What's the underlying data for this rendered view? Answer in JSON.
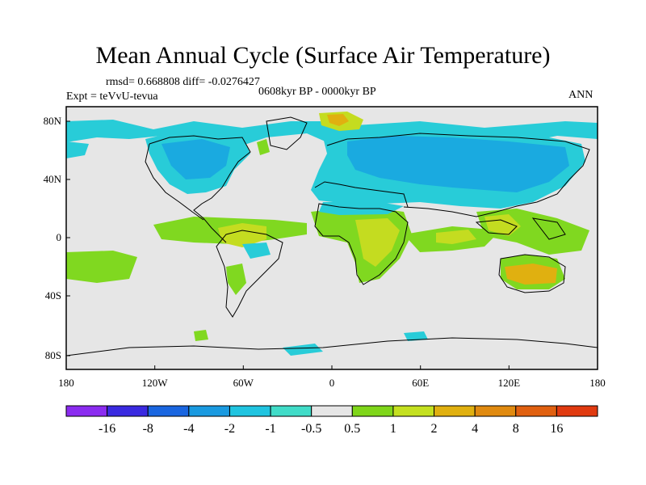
{
  "title": "Mean Annual Cycle (Surface Air Temperature)",
  "stats": {
    "rmsd": "rmsd= 0.668808 diff= -0.0276427",
    "experiment": "Expt = teVvU-tevua",
    "period": "0608kyr BP - 0000kyr BP",
    "season": "ANN"
  },
  "axes": {
    "x_ticks": [
      "180",
      "120W",
      "60W",
      "0",
      "60E",
      "120E",
      "180"
    ],
    "y_ticks": [
      "80N",
      "40N",
      "0",
      "40S",
      "80S"
    ]
  },
  "colorbar": {
    "colors": [
      "#8b2cf0",
      "#3a2ae0",
      "#1a66e0",
      "#1a9ae0",
      "#20c4e0",
      "#40dcc8",
      "#e6e6e6",
      "#7fd61a",
      "#c4e020",
      "#e0b010",
      "#e08a10",
      "#e06010",
      "#e03a10"
    ],
    "labels": [
      "-16",
      "-8",
      "-4",
      "-2",
      "-1",
      "-0.5",
      "0.5",
      "1",
      "2",
      "4",
      "8",
      "16"
    ]
  },
  "legend_colors": {
    "cold_mid": "#1aaae0",
    "cold_light": "#28ccd8",
    "neutral": "#e6e6e6",
    "warm_light": "#80d820",
    "warm_mid": "#c4dc20",
    "warm_strong": "#e0b010"
  }
}
